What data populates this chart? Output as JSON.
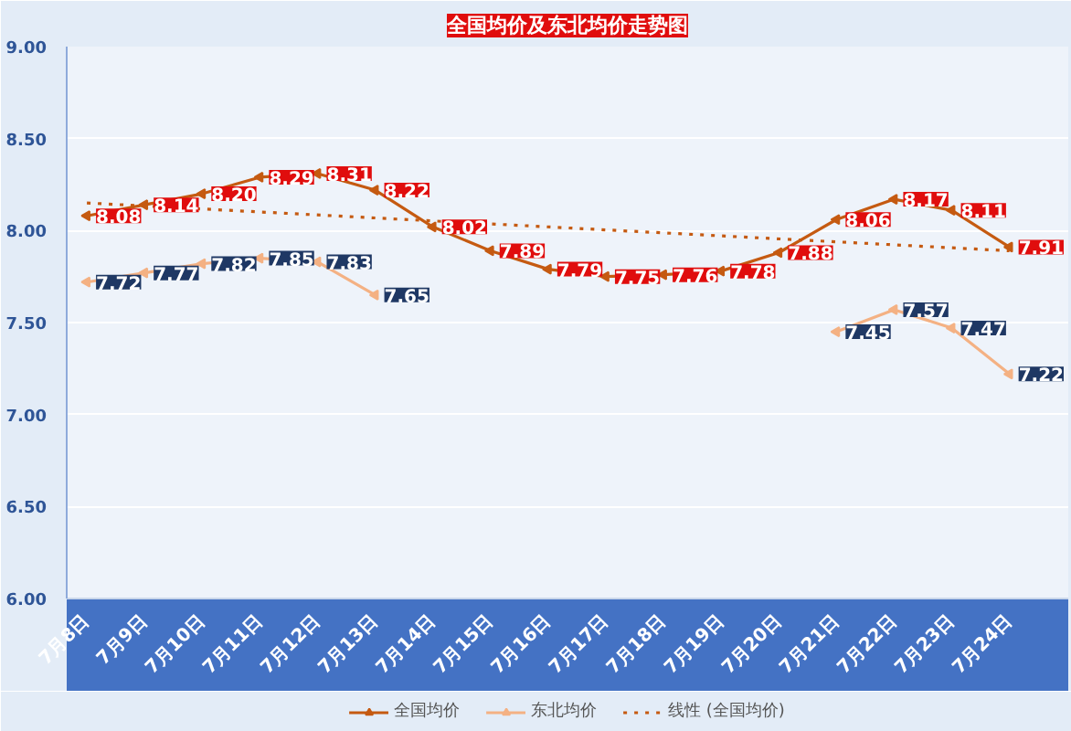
{
  "chart_data": {
    "type": "line",
    "title": "全国均价及东北均价走势图",
    "categories": [
      "7月8日",
      "7月9日",
      "7月10日",
      "7月11日",
      "7月12日",
      "7月13日",
      "7月14日",
      "7月15日",
      "7月16日",
      "7月17日",
      "7月18日",
      "7月19日",
      "7月20日",
      "7月21日",
      "7月22日",
      "7月23日",
      "7月24日"
    ],
    "series": [
      {
        "name": "全国均价",
        "color": "#c55a11",
        "marker": "triangle",
        "values": [
          8.08,
          8.14,
          8.2,
          8.29,
          8.31,
          8.22,
          8.02,
          7.89,
          7.79,
          7.75,
          7.76,
          7.78,
          7.88,
          8.06,
          8.17,
          8.11,
          7.91
        ],
        "value_labels": [
          "8.08",
          "8.14",
          "8.20",
          "8.29",
          "8.31",
          "8.22",
          "8.02",
          "7.89",
          "7.79",
          "7.75",
          "7.76",
          "7.78",
          "7.88",
          "8.06",
          "8.17",
          "8.11",
          "7.91"
        ]
      },
      {
        "name": "东北均价",
        "color": "#f4b183",
        "marker": "triangle",
        "values": [
          7.72,
          7.77,
          7.82,
          7.85,
          7.83,
          7.65,
          null,
          null,
          null,
          null,
          null,
          null,
          null,
          7.45,
          7.57,
          7.47,
          7.22
        ],
        "value_labels": [
          "7.72",
          "7.77",
          "7.82",
          "7.85",
          "7.83",
          "7.65",
          null,
          null,
          null,
          null,
          null,
          null,
          null,
          "7.45",
          "7.57",
          "7.47",
          "7.22"
        ]
      },
      {
        "name": "线性 (全国均价)",
        "type": "line",
        "color": "#c55a11",
        "line_style": "dotted",
        "x": [
          "7月8日",
          "7月24日"
        ],
        "values": [
          8.15,
          7.89
        ]
      }
    ],
    "ylim": [
      6,
      9
    ],
    "yticks": [
      {
        "value": 6,
        "label": "6.00"
      },
      {
        "value": 6.5,
        "label": "6.50"
      },
      {
        "value": 7,
        "label": "7.00"
      },
      {
        "value": 7.5,
        "label": "7.50"
      },
      {
        "value": 8,
        "label": "8.00"
      },
      {
        "value": 8.5,
        "label": "8.50"
      },
      {
        "value": 9,
        "label": "9.00"
      }
    ],
    "grid": "y",
    "legend": "bottom"
  }
}
